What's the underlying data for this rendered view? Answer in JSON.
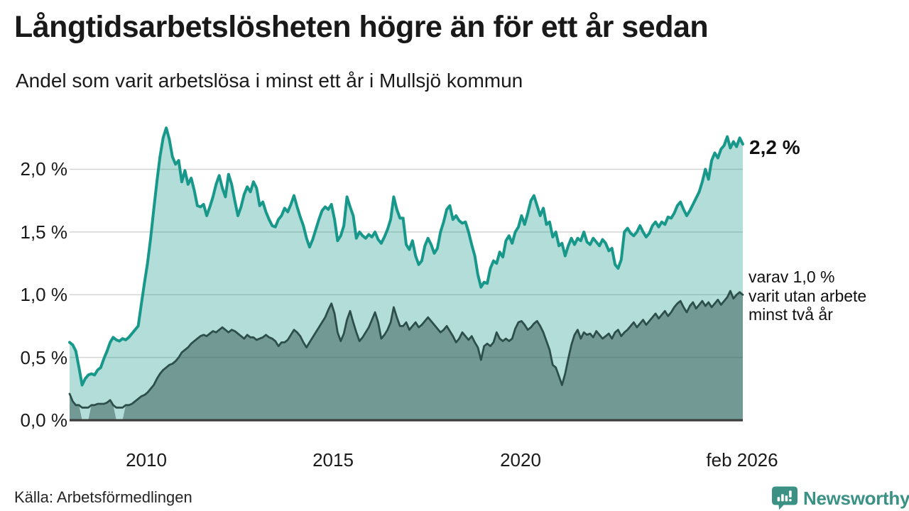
{
  "header": {
    "title": "Långtidsarbetslösheten högre än för ett år sedan",
    "subtitle": "Andel som varit arbetslösa i minst ett år i Mullsjö kommun"
  },
  "axis": {
    "y_ticks": [
      "2,0 %",
      "1,5 %",
      "1,0 %",
      "0,5 %",
      "0,0 %"
    ],
    "x_ticks": [
      "2010",
      "2015",
      "2020",
      "feb 2026"
    ]
  },
  "annotations": {
    "latest_total": "2,2 %",
    "secondary_lines": [
      "varav 1,0 %",
      "varit utan arbete",
      "minst två år"
    ]
  },
  "footer": {
    "source": "Källa: Arbetsförmedlingen",
    "brand": "Newsworthy"
  },
  "colors": {
    "total_line": "#17988a",
    "total_fill": "rgba(23,152,138,0.33)",
    "two_year_line": "#2d4f4b",
    "two_year_fill": "rgba(45,79,75,0.48)",
    "gridline": "#d4d4d4",
    "axis_baseline": "#3d3d3d",
    "brand_teal": "#3a9184"
  },
  "chart_data": {
    "type": "area",
    "title": "Långtidsarbetslösheten högre än för ett år sedan",
    "subtitle": "Andel som varit arbetslösa i minst ett år i Mullsjö kommun",
    "unit": "percent of workforce",
    "frequency": "monthly",
    "x_start": "2008-02",
    "x_end": "2026-02",
    "x_tick_labels": [
      "2010",
      "2015",
      "2020",
      "feb 2026"
    ],
    "y_tick_labels": [
      "0,0 %",
      "0,5 %",
      "1,0 %",
      "1,5 %",
      "2,0 %"
    ],
    "y_gridline_values": [
      0.5,
      1.0,
      1.5,
      2.0
    ],
    "ylim": [
      0,
      2.39
    ],
    "grid": true,
    "legend_position": "direct-labels-right",
    "series": [
      {
        "name": "Arbetslösa minst ett år",
        "end_label": "2,2 %",
        "latest_value": 2.2,
        "color": "#17988a",
        "fill": "rgba(23,152,138,0.33)",
        "values": [
          0.62,
          0.6,
          0.55,
          0.42,
          0.28,
          0.33,
          0.36,
          0.37,
          0.36,
          0.4,
          0.42,
          0.49,
          0.55,
          0.62,
          0.66,
          0.64,
          0.63,
          0.65,
          0.64,
          0.66,
          0.69,
          0.72,
          0.75,
          0.92,
          1.09,
          1.25,
          1.45,
          1.68,
          1.9,
          2.1,
          2.25,
          2.33,
          2.24,
          2.1,
          2.04,
          2.07,
          1.9,
          1.99,
          1.88,
          1.93,
          1.83,
          1.71,
          1.7,
          1.72,
          1.63,
          1.7,
          1.78,
          1.88,
          1.95,
          1.85,
          1.78,
          1.96,
          1.88,
          1.75,
          1.63,
          1.7,
          1.8,
          1.86,
          1.82,
          1.9,
          1.85,
          1.71,
          1.74,
          1.66,
          1.6,
          1.55,
          1.54,
          1.6,
          1.63,
          1.69,
          1.66,
          1.72,
          1.79,
          1.7,
          1.62,
          1.55,
          1.45,
          1.38,
          1.44,
          1.52,
          1.6,
          1.67,
          1.7,
          1.68,
          1.72,
          1.6,
          1.43,
          1.47,
          1.55,
          1.78,
          1.7,
          1.63,
          1.45,
          1.5,
          1.47,
          1.45,
          1.48,
          1.46,
          1.5,
          1.44,
          1.41,
          1.46,
          1.52,
          1.6,
          1.78,
          1.68,
          1.61,
          1.61,
          1.4,
          1.36,
          1.43,
          1.31,
          1.24,
          1.27,
          1.39,
          1.45,
          1.4,
          1.33,
          1.37,
          1.5,
          1.58,
          1.68,
          1.71,
          1.6,
          1.63,
          1.59,
          1.57,
          1.58,
          1.5,
          1.4,
          1.31,
          1.16,
          1.06,
          1.1,
          1.09,
          1.21,
          1.27,
          1.25,
          1.34,
          1.3,
          1.43,
          1.47,
          1.41,
          1.5,
          1.54,
          1.63,
          1.56,
          1.65,
          1.75,
          1.79,
          1.71,
          1.63,
          1.69,
          1.56,
          1.58,
          1.46,
          1.5,
          1.39,
          1.41,
          1.31,
          1.39,
          1.45,
          1.4,
          1.45,
          1.43,
          1.5,
          1.42,
          1.4,
          1.45,
          1.42,
          1.39,
          1.44,
          1.41,
          1.35,
          1.37,
          1.24,
          1.21,
          1.28,
          1.5,
          1.53,
          1.49,
          1.47,
          1.5,
          1.55,
          1.5,
          1.46,
          1.49,
          1.55,
          1.58,
          1.54,
          1.58,
          1.56,
          1.62,
          1.61,
          1.65,
          1.71,
          1.74,
          1.68,
          1.63,
          1.67,
          1.72,
          1.77,
          1.82,
          1.9,
          2.0,
          1.92,
          2.07,
          2.13,
          2.09,
          2.16,
          2.19,
          2.26,
          2.17,
          2.22,
          2.18,
          2.25,
          2.2
        ]
      },
      {
        "name": "Varav utan arbete minst två år",
        "end_label": "varav 1,0 % varit utan arbete minst två år",
        "latest_value": 1.0,
        "color": "#2d4f4b",
        "fill": "rgba(45,79,75,0.48)",
        "values": [
          0.21,
          0.15,
          0.12,
          0.12,
          0.0,
          0.0,
          0.0,
          0.12,
          0.12,
          0.13,
          0.13,
          0.13,
          0.14,
          0.16,
          0.12,
          0.0,
          0.0,
          0.0,
          0.12,
          0.12,
          0.13,
          0.15,
          0.17,
          0.19,
          0.2,
          0.22,
          0.25,
          0.28,
          0.33,
          0.37,
          0.4,
          0.42,
          0.44,
          0.45,
          0.47,
          0.5,
          0.54,
          0.56,
          0.58,
          0.61,
          0.63,
          0.65,
          0.67,
          0.68,
          0.67,
          0.69,
          0.71,
          0.7,
          0.72,
          0.74,
          0.72,
          0.7,
          0.72,
          0.71,
          0.69,
          0.67,
          0.65,
          0.68,
          0.66,
          0.66,
          0.64,
          0.65,
          0.66,
          0.68,
          0.66,
          0.65,
          0.63,
          0.59,
          0.62,
          0.62,
          0.64,
          0.68,
          0.72,
          0.7,
          0.67,
          0.62,
          0.58,
          0.62,
          0.66,
          0.7,
          0.74,
          0.78,
          0.82,
          0.88,
          0.93,
          0.85,
          0.7,
          0.63,
          0.69,
          0.8,
          0.87,
          0.78,
          0.7,
          0.63,
          0.66,
          0.7,
          0.74,
          0.8,
          0.86,
          0.78,
          0.65,
          0.68,
          0.72,
          0.78,
          0.9,
          0.82,
          0.75,
          0.75,
          0.78,
          0.72,
          0.75,
          0.78,
          0.74,
          0.76,
          0.79,
          0.82,
          0.79,
          0.76,
          0.73,
          0.7,
          0.72,
          0.75,
          0.71,
          0.67,
          0.62,
          0.65,
          0.7,
          0.67,
          0.64,
          0.67,
          0.62,
          0.58,
          0.48,
          0.59,
          0.61,
          0.59,
          0.62,
          0.7,
          0.65,
          0.63,
          0.65,
          0.63,
          0.65,
          0.73,
          0.78,
          0.79,
          0.76,
          0.72,
          0.74,
          0.77,
          0.79,
          0.75,
          0.7,
          0.63,
          0.56,
          0.44,
          0.42,
          0.35,
          0.28,
          0.37,
          0.49,
          0.6,
          0.68,
          0.72,
          0.65,
          0.7,
          0.68,
          0.69,
          0.66,
          0.71,
          0.68,
          0.65,
          0.67,
          0.69,
          0.65,
          0.7,
          0.72,
          0.67,
          0.7,
          0.72,
          0.75,
          0.78,
          0.74,
          0.77,
          0.8,
          0.76,
          0.79,
          0.82,
          0.85,
          0.81,
          0.84,
          0.87,
          0.83,
          0.86,
          0.9,
          0.93,
          0.95,
          0.9,
          0.86,
          0.91,
          0.94,
          0.89,
          0.92,
          0.95,
          0.91,
          0.94,
          0.9,
          0.93,
          0.96,
          0.92,
          0.95,
          0.98,
          1.03,
          0.97,
          1.0,
          1.02,
          1.0
        ]
      }
    ]
  }
}
